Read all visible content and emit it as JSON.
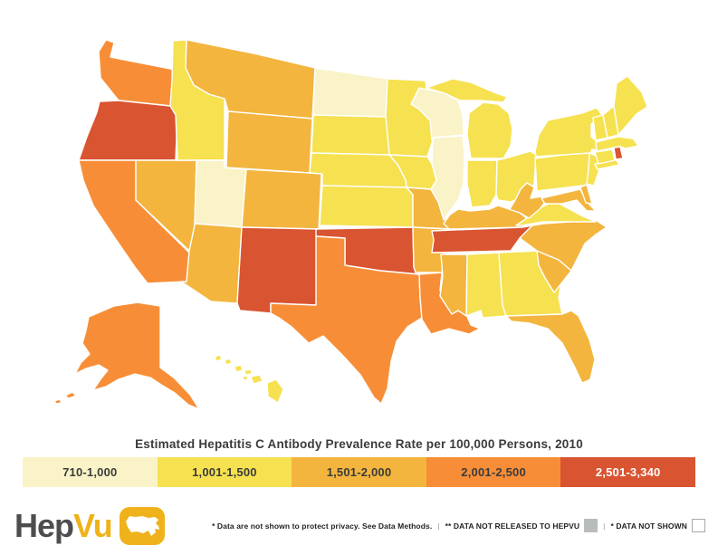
{
  "title": "Estimated Hepatitis C Antibody Prevalence Rate per 100,000 Persons, 2010",
  "legend": {
    "buckets": [
      {
        "label": "710-1,000",
        "color": "#FAF3C8",
        "text_color": "#3b3b3b"
      },
      {
        "label": "1,001-1,500",
        "color": "#F6E150",
        "text_color": "#3b3b3b"
      },
      {
        "label": "1,501-2,000",
        "color": "#F3B53E",
        "text_color": "#3b3b3b"
      },
      {
        "label": "2,001-2,500",
        "color": "#F78E37",
        "text_color": "#3b3b3b"
      },
      {
        "label": "2,501-3,340",
        "color": "#D95431",
        "text_color": "#ffffff"
      }
    ]
  },
  "map": {
    "states": [
      {
        "abbr": "WA",
        "name": "Washington",
        "bucket": 3
      },
      {
        "abbr": "OR",
        "name": "Oregon",
        "bucket": 4
      },
      {
        "abbr": "CA",
        "name": "California",
        "bucket": 3
      },
      {
        "abbr": "NV",
        "name": "Nevada",
        "bucket": 2
      },
      {
        "abbr": "ID",
        "name": "Idaho",
        "bucket": 1
      },
      {
        "abbr": "MT",
        "name": "Montana",
        "bucket": 2
      },
      {
        "abbr": "WY",
        "name": "Wyoming",
        "bucket": 2
      },
      {
        "abbr": "UT",
        "name": "Utah",
        "bucket": 0
      },
      {
        "abbr": "CO",
        "name": "Colorado",
        "bucket": 2
      },
      {
        "abbr": "AZ",
        "name": "Arizona",
        "bucket": 2
      },
      {
        "abbr": "NM",
        "name": "New Mexico",
        "bucket": 4
      },
      {
        "abbr": "ND",
        "name": "North Dakota",
        "bucket": 0
      },
      {
        "abbr": "SD",
        "name": "South Dakota",
        "bucket": 1
      },
      {
        "abbr": "NE",
        "name": "Nebraska",
        "bucket": 1
      },
      {
        "abbr": "KS",
        "name": "Kansas",
        "bucket": 1
      },
      {
        "abbr": "OK",
        "name": "Oklahoma",
        "bucket": 4
      },
      {
        "abbr": "TX",
        "name": "Texas",
        "bucket": 3
      },
      {
        "abbr": "MN",
        "name": "Minnesota",
        "bucket": 1
      },
      {
        "abbr": "IA",
        "name": "Iowa",
        "bucket": 1
      },
      {
        "abbr": "MO",
        "name": "Missouri",
        "bucket": 2
      },
      {
        "abbr": "AR",
        "name": "Arkansas",
        "bucket": 2
      },
      {
        "abbr": "LA",
        "name": "Louisiana",
        "bucket": 3
      },
      {
        "abbr": "WI",
        "name": "Wisconsin",
        "bucket": 0
      },
      {
        "abbr": "IL",
        "name": "Illinois",
        "bucket": 0
      },
      {
        "abbr": "MI",
        "name": "Michigan",
        "bucket": 1
      },
      {
        "abbr": "IN",
        "name": "Indiana",
        "bucket": 1
      },
      {
        "abbr": "OH",
        "name": "Ohio",
        "bucket": 1
      },
      {
        "abbr": "KY",
        "name": "Kentucky",
        "bucket": 2
      },
      {
        "abbr": "TN",
        "name": "Tennessee",
        "bucket": 4
      },
      {
        "abbr": "MS",
        "name": "Mississippi",
        "bucket": 2
      },
      {
        "abbr": "AL",
        "name": "Alabama",
        "bucket": 1
      },
      {
        "abbr": "GA",
        "name": "Georgia",
        "bucket": 1
      },
      {
        "abbr": "FL",
        "name": "Florida",
        "bucket": 2
      },
      {
        "abbr": "SC",
        "name": "South Carolina",
        "bucket": 2
      },
      {
        "abbr": "NC",
        "name": "North Carolina",
        "bucket": 2
      },
      {
        "abbr": "VA",
        "name": "Virginia",
        "bucket": 1
      },
      {
        "abbr": "WV",
        "name": "West Virginia",
        "bucket": 2
      },
      {
        "abbr": "MD",
        "name": "Maryland",
        "bucket": 2
      },
      {
        "abbr": "DE",
        "name": "Delaware",
        "bucket": 2
      },
      {
        "abbr": "PA",
        "name": "Pennsylvania",
        "bucket": 1
      },
      {
        "abbr": "NJ",
        "name": "New Jersey",
        "bucket": 1
      },
      {
        "abbr": "NY",
        "name": "New York",
        "bucket": 1
      },
      {
        "abbr": "CT",
        "name": "Connecticut",
        "bucket": 1
      },
      {
        "abbr": "RI",
        "name": "Rhode Island",
        "bucket": 4
      },
      {
        "abbr": "MA",
        "name": "Massachusetts",
        "bucket": 1
      },
      {
        "abbr": "VT",
        "name": "Vermont",
        "bucket": 1
      },
      {
        "abbr": "NH",
        "name": "New Hampshire",
        "bucket": 1
      },
      {
        "abbr": "ME",
        "name": "Maine",
        "bucket": 1
      },
      {
        "abbr": "AK",
        "name": "Alaska",
        "bucket": 3
      },
      {
        "abbr": "HI",
        "name": "Hawaii",
        "bucket": 1
      }
    ]
  },
  "logo": {
    "part1": "Hep",
    "part2": "Vu",
    "part1_color": "#4d4d4f",
    "accent_color": "#efb21a"
  },
  "footer": {
    "note_privacy": "* Data are not shown to protect privacy. See Data Methods.",
    "pipe": "|",
    "note_not_released": "** DATA NOT RELEASED TO HEPVU",
    "note_not_shown": "* DATA NOT SHOWN",
    "not_released_color": "#b9bdb9",
    "not_shown_color": "#ffffff"
  }
}
